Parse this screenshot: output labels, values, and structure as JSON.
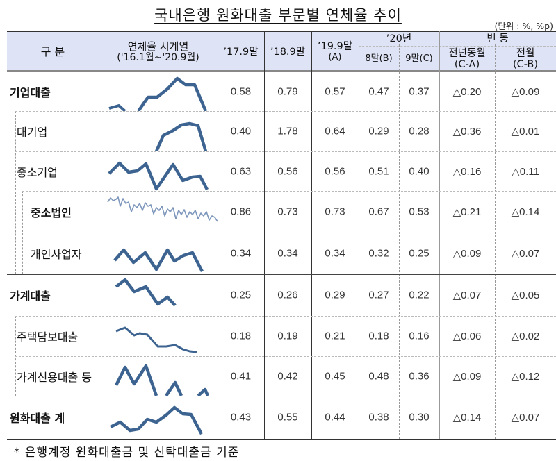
{
  "title": "국내은행 원화대출 부문별 연체율 추이",
  "unit": "(단위 : %, %p)",
  "header": {
    "category": "구 분",
    "series_line1": "연체율 시계열",
    "series_line2": "('16.1월~'20.9월)",
    "col_1709": "’17.9말",
    "col_1809": "’18.9말",
    "col_1909_line1": "’19.9말",
    "col_1909_line2": "(A)",
    "group_20": "’20년",
    "col_2008": "8말(B)",
    "col_2009": "9말(C)",
    "group_change": "변 동",
    "col_yoy_line1": "전년동월",
    "col_yoy_line2": "(C-A)",
    "col_mom_line1": "전월",
    "col_mom_line2": "(C-B)"
  },
  "rows": [
    {
      "label": "기업대출",
      "v1709": "0.58",
      "v1809": "0.79",
      "v1909": "0.57",
      "v2008": "0.47",
      "v2009": "0.37",
      "yoy": "△0.20",
      "mom": "△0.09"
    },
    {
      "label": "대기업",
      "v1709": "0.40",
      "v1809": "1.78",
      "v1909": "0.64",
      "v2008": "0.29",
      "v2009": "0.28",
      "yoy": "△0.36",
      "mom": "△0.01"
    },
    {
      "label": "중소기업",
      "v1709": "0.63",
      "v1809": "0.56",
      "v1909": "0.56",
      "v2008": "0.51",
      "v2009": "0.40",
      "yoy": "△0.16",
      "mom": "△0.11"
    },
    {
      "label": "중소법인",
      "v1709": "0.86",
      "v1809": "0.73",
      "v1909": "0.73",
      "v2008": "0.67",
      "v2009": "0.53",
      "yoy": "△0.21",
      "mom": "△0.14"
    },
    {
      "label": "개인사업자",
      "v1709": "0.34",
      "v1809": "0.34",
      "v1909": "0.34",
      "v2008": "0.32",
      "v2009": "0.25",
      "yoy": "△0.09",
      "mom": "△0.07"
    },
    {
      "label": "가계대출",
      "v1709": "0.25",
      "v1809": "0.26",
      "v1909": "0.29",
      "v2008": "0.27",
      "v2009": "0.22",
      "yoy": "△0.07",
      "mom": "△0.05"
    },
    {
      "label": "주택담보대출",
      "v1709": "0.18",
      "v1809": "0.19",
      "v1909": "0.21",
      "v2008": "0.18",
      "v2009": "0.16",
      "yoy": "△0.06",
      "mom": "△0.02"
    },
    {
      "label": "가계신용대출 등",
      "v1709": "0.41",
      "v1809": "0.42",
      "v1909": "0.45",
      "v2008": "0.48",
      "v2009": "0.36",
      "yoy": "△0.09",
      "mom": "△0.12"
    },
    {
      "label": "원화대출 계",
      "v1709": "0.43",
      "v1809": "0.55",
      "v1909": "0.44",
      "v2008": "0.38",
      "v2009": "0.30",
      "yoy": "△0.14",
      "mom": "△0.07"
    }
  ],
  "sparkline_color": "#3d6491",
  "footnote": "* 은행계정 원화대출금 및 신탁대출금 기준"
}
